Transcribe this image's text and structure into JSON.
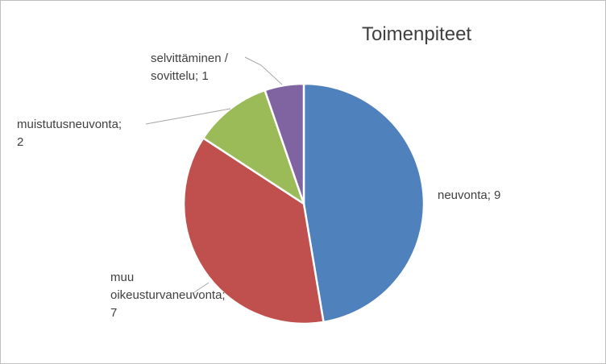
{
  "chart_data": {
    "type": "pie",
    "title": "Toimenpiteet",
    "categories": [
      "neuvonta",
      "muu oikeusturvaneuvonta",
      "muistutusneuvonta",
      "selvittäminen / sovittelu"
    ],
    "values": [
      9,
      7,
      2,
      1
    ],
    "colors": [
      "#4f81bd",
      "#c0504d",
      "#9bbb59",
      "#8064a2"
    ],
    "data_labels": [
      {
        "lines": [
          "neuvonta; 9"
        ]
      },
      {
        "lines": [
          "muu",
          "oikeusturvaneuvonta;",
          "7"
        ]
      },
      {
        "lines": [
          "muistutusneuvonta;",
          "2"
        ]
      },
      {
        "lines": [
          "selvittäminen /",
          "sovittelu; 1"
        ]
      }
    ],
    "legend": "none"
  }
}
